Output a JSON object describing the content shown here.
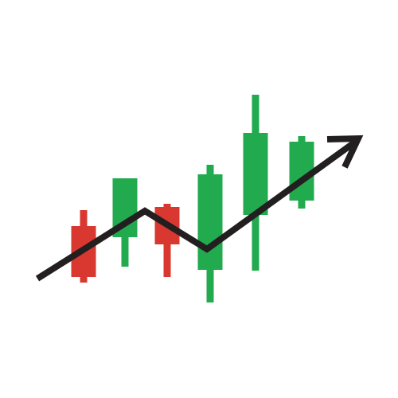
{
  "icon": {
    "name": "candlestick-uptrend-icon",
    "colors": {
      "up": "#22aa4f",
      "down": "#d8382f",
      "arrow": "#231f20",
      "background": "#ffffff"
    },
    "candles": [
      {
        "direction": "down"
      },
      {
        "direction": "up"
      },
      {
        "direction": "down"
      },
      {
        "direction": "up"
      },
      {
        "direction": "up"
      },
      {
        "direction": "up"
      }
    ],
    "arrow": {
      "direction": "up-right"
    }
  }
}
